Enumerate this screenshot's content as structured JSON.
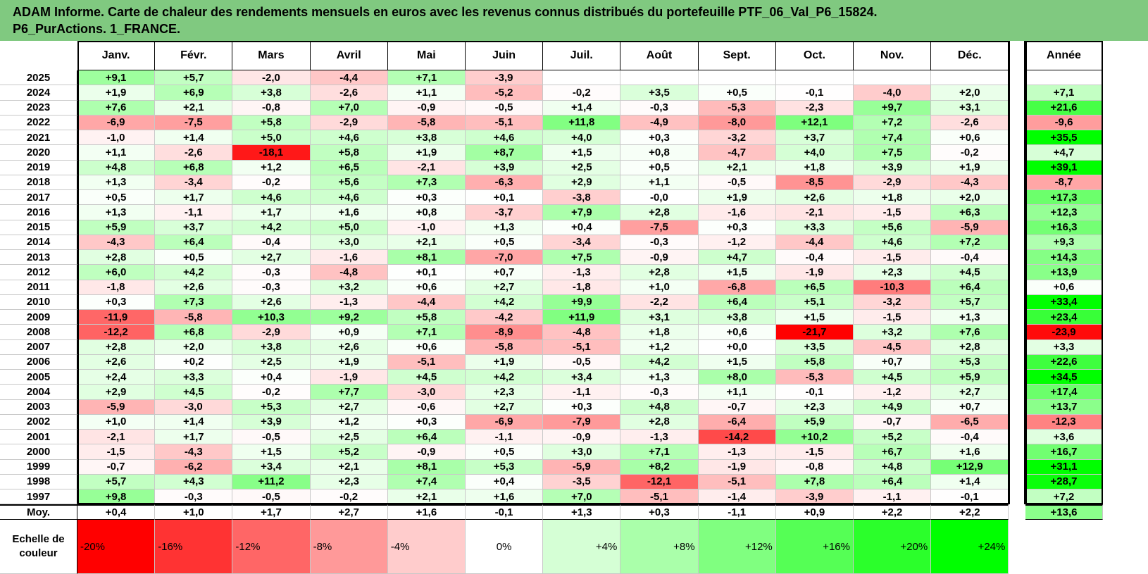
{
  "title": {
    "line1": "ADAM Informe. Carte de chaleur des rendements mensuels en euros avec les revenus connus distribués du portefeuille PTF_06_Val_P6_15824.",
    "line2": "P6_PurActions. 1_FRANCE."
  },
  "chart_data": {
    "type": "heatmap",
    "months": [
      "Janv.",
      "Févr.",
      "Mars",
      "Avril",
      "Mai",
      "Juin",
      "Juil.",
      "Août",
      "Sept.",
      "Oct.",
      "Nov.",
      "Déc."
    ],
    "year_header": "Année",
    "rows": [
      {
        "label": "2025",
        "values": [
          "+9,1",
          "+5,7",
          "-2,0",
          "-4,4",
          "+7,1",
          "-3,9",
          "",
          "",
          "",
          "",
          "",
          ""
        ],
        "year": ""
      },
      {
        "label": "2024",
        "values": [
          "+1,9",
          "+6,9",
          "+3,8",
          "-2,6",
          "+1,1",
          "-5,2",
          "-0,2",
          "+3,5",
          "+0,5",
          "-0,1",
          "-4,0",
          "+2,0"
        ],
        "year": "+7,1"
      },
      {
        "label": "2023",
        "values": [
          "+7,6",
          "+2,1",
          "-0,8",
          "+7,0",
          "-0,9",
          "-0,5",
          "+1,4",
          "-0,3",
          "-5,3",
          "-2,3",
          "+9,7",
          "+3,1"
        ],
        "year": "+21,6"
      },
      {
        "label": "2022",
        "values": [
          "-6,9",
          "-7,5",
          "+5,8",
          "-2,9",
          "-5,8",
          "-5,1",
          "+11,8",
          "-4,9",
          "-8,0",
          "+12,1",
          "+7,2",
          "-2,6"
        ],
        "year": "-9,6"
      },
      {
        "label": "2021",
        "values": [
          "-1,0",
          "+1,4",
          "+5,0",
          "+4,6",
          "+3,8",
          "+4,6",
          "+4,0",
          "+0,3",
          "-3,2",
          "+3,7",
          "+7,4",
          "+0,6"
        ],
        "year": "+35,5"
      },
      {
        "label": "2020",
        "values": [
          "+1,1",
          "-2,6",
          "-18,1",
          "+5,8",
          "+1,9",
          "+8,7",
          "+1,5",
          "+0,8",
          "-4,7",
          "+4,0",
          "+7,5",
          "-0,2"
        ],
        "year": "+4,7"
      },
      {
        "label": "2019",
        "values": [
          "+4,8",
          "+6,8",
          "+1,2",
          "+6,5",
          "-2,1",
          "+3,9",
          "+2,5",
          "+0,5",
          "+2,1",
          "+1,8",
          "+3,9",
          "+1,9"
        ],
        "year": "+39,1"
      },
      {
        "label": "2018",
        "values": [
          "+1,3",
          "-3,4",
          "-0,2",
          "+5,6",
          "+7,3",
          "-6,3",
          "+2,9",
          "+1,1",
          "-0,5",
          "-8,5",
          "-2,9",
          "-4,3"
        ],
        "year": "-8,7"
      },
      {
        "label": "2017",
        "values": [
          "+0,5",
          "+1,7",
          "+4,6",
          "+4,6",
          "+0,3",
          "+0,1",
          "-3,8",
          "-0,0",
          "+1,9",
          "+2,6",
          "+1,8",
          "+2,0"
        ],
        "year": "+17,3"
      },
      {
        "label": "2016",
        "values": [
          "+1,3",
          "-1,1",
          "+1,7",
          "+1,6",
          "+0,8",
          "-3,7",
          "+7,9",
          "+2,8",
          "-1,6",
          "-2,1",
          "-1,5",
          "+6,3"
        ],
        "year": "+12,3"
      },
      {
        "label": "2015",
        "values": [
          "+5,9",
          "+3,7",
          "+4,2",
          "+5,0",
          "-1,0",
          "+1,3",
          "+0,4",
          "-7,5",
          "+0,3",
          "+3,3",
          "+5,6",
          "-5,9"
        ],
        "year": "+16,3"
      },
      {
        "label": "2014",
        "values": [
          "-4,3",
          "+6,4",
          "-0,4",
          "+3,0",
          "+2,1",
          "+0,5",
          "-3,4",
          "-0,3",
          "-1,2",
          "-4,4",
          "+4,6",
          "+7,2"
        ],
        "year": "+9,3"
      },
      {
        "label": "2013",
        "values": [
          "+2,8",
          "+0,5",
          "+2,7",
          "-1,6",
          "+8,1",
          "-7,0",
          "+7,5",
          "-0,9",
          "+4,7",
          "-0,4",
          "-1,5",
          "-0,4"
        ],
        "year": "+14,3"
      },
      {
        "label": "2012",
        "values": [
          "+6,0",
          "+4,2",
          "-0,3",
          "-4,8",
          "+0,1",
          "+0,7",
          "-1,3",
          "+2,8",
          "+1,5",
          "-1,9",
          "+2,3",
          "+4,5"
        ],
        "year": "+13,9"
      },
      {
        "label": "2011",
        "values": [
          "-1,8",
          "+2,6",
          "-0,3",
          "+3,2",
          "+0,6",
          "+2,7",
          "-1,8",
          "+1,0",
          "-6,8",
          "+6,5",
          "-10,3",
          "+6,4"
        ],
        "year": "+0,6"
      },
      {
        "label": "2010",
        "values": [
          "+0,3",
          "+7,3",
          "+2,6",
          "-1,3",
          "-4,4",
          "+4,2",
          "+9,9",
          "-2,2",
          "+6,4",
          "+5,1",
          "-3,2",
          "+5,7"
        ],
        "year": "+33,4"
      },
      {
        "label": "2009",
        "values": [
          "-11,9",
          "-5,8",
          "+10,3",
          "+9,2",
          "+5,8",
          "-4,2",
          "+11,9",
          "+3,1",
          "+3,8",
          "+1,5",
          "-1,5",
          "+1,3"
        ],
        "year": "+23,4"
      },
      {
        "label": "2008",
        "values": [
          "-12,2",
          "+6,8",
          "-2,9",
          "+0,9",
          "+7,1",
          "-8,9",
          "-4,8",
          "+1,8",
          "+0,6",
          "-21,7",
          "+3,2",
          "+7,6"
        ],
        "year": "-23,9"
      },
      {
        "label": "2007",
        "values": [
          "+2,8",
          "+2,0",
          "+3,8",
          "+2,6",
          "+0,6",
          "-5,8",
          "-5,1",
          "+1,2",
          "+0,0",
          "+3,5",
          "-4,5",
          "+2,8"
        ],
        "year": "+3,3"
      },
      {
        "label": "2006",
        "values": [
          "+2,6",
          "+0,2",
          "+2,5",
          "+1,9",
          "-5,1",
          "+1,9",
          "-0,5",
          "+4,2",
          "+1,5",
          "+5,8",
          "+0,7",
          "+5,3"
        ],
        "year": "+22,6"
      },
      {
        "label": "2005",
        "values": [
          "+2,4",
          "+3,3",
          "+0,4",
          "-1,9",
          "+4,5",
          "+4,2",
          "+3,4",
          "+1,3",
          "+8,0",
          "-5,3",
          "+4,5",
          "+5,9"
        ],
        "year": "+34,5"
      },
      {
        "label": "2004",
        "values": [
          "+2,9",
          "+4,5",
          "-0,2",
          "+7,7",
          "-3,0",
          "+2,3",
          "-1,1",
          "-0,3",
          "+1,1",
          "-0,1",
          "-1,2",
          "+2,7"
        ],
        "year": "+17,4"
      },
      {
        "label": "2003",
        "values": [
          "-5,9",
          "-3,0",
          "+5,3",
          "+2,7",
          "-0,6",
          "+2,7",
          "+0,3",
          "+4,8",
          "-0,7",
          "+2,3",
          "+4,9",
          "+0,7"
        ],
        "year": "+13,7"
      },
      {
        "label": "2002",
        "values": [
          "+1,0",
          "+1,4",
          "+3,9",
          "+1,2",
          "+0,3",
          "-6,9",
          "-7,9",
          "+2,8",
          "-6,4",
          "+5,9",
          "-0,7",
          "-6,5"
        ],
        "year": "-12,3"
      },
      {
        "label": "2001",
        "values": [
          "-2,1",
          "+1,7",
          "-0,5",
          "+2,5",
          "+6,4",
          "-1,1",
          "-0,9",
          "-1,3",
          "-14,2",
          "+10,2",
          "+5,2",
          "-0,4"
        ],
        "year": "+3,6"
      },
      {
        "label": "2000",
        "values": [
          "-1,5",
          "-4,3",
          "+1,5",
          "+5,2",
          "-0,9",
          "+0,5",
          "+3,0",
          "+7,1",
          "-1,3",
          "-1,5",
          "+6,7",
          "+1,6"
        ],
        "year": "+16,7"
      },
      {
        "label": "1999",
        "values": [
          "-0,7",
          "-6,2",
          "+3,4",
          "+2,1",
          "+8,1",
          "+5,3",
          "-5,9",
          "+8,2",
          "-1,9",
          "-0,8",
          "+4,8",
          "+12,9"
        ],
        "year": "+31,1"
      },
      {
        "label": "1998",
        "values": [
          "+5,7",
          "+4,3",
          "+11,2",
          "+2,3",
          "+7,4",
          "+0,4",
          "-3,5",
          "-12,1",
          "-5,1",
          "+7,8",
          "+6,4",
          "+1,4"
        ],
        "year": "+28,7"
      },
      {
        "label": "1997",
        "values": [
          "+9,8",
          "-0,3",
          "-0,5",
          "-0,2",
          "+2,1",
          "+1,6",
          "+7,0",
          "-5,1",
          "-1,4",
          "-3,9",
          "-1,1",
          "-0,1"
        ],
        "year": "+7,2"
      }
    ],
    "average_row": {
      "label": "Moy.",
      "values": [
        "+0,4",
        "+1,0",
        "+1,7",
        "+2,7",
        "+1,6",
        "-0,1",
        "+1,3",
        "+0,3",
        "-1,1",
        "+0,9",
        "+2,2",
        "+2,2"
      ],
      "year": "+13,6"
    },
    "color_scale": {
      "label_line1": "Echelle de",
      "label_line2": "couleur",
      "steps": [
        "-20%",
        "-16%",
        "-12%",
        "-8%",
        "-4%",
        "0%",
        "+4%",
        "+8%",
        "+12%",
        "+16%",
        "+20%",
        "+24%"
      ],
      "negative_color": "#ff0000",
      "neutral_color": "#ffffff",
      "positive_color": "#00ff00"
    }
  }
}
